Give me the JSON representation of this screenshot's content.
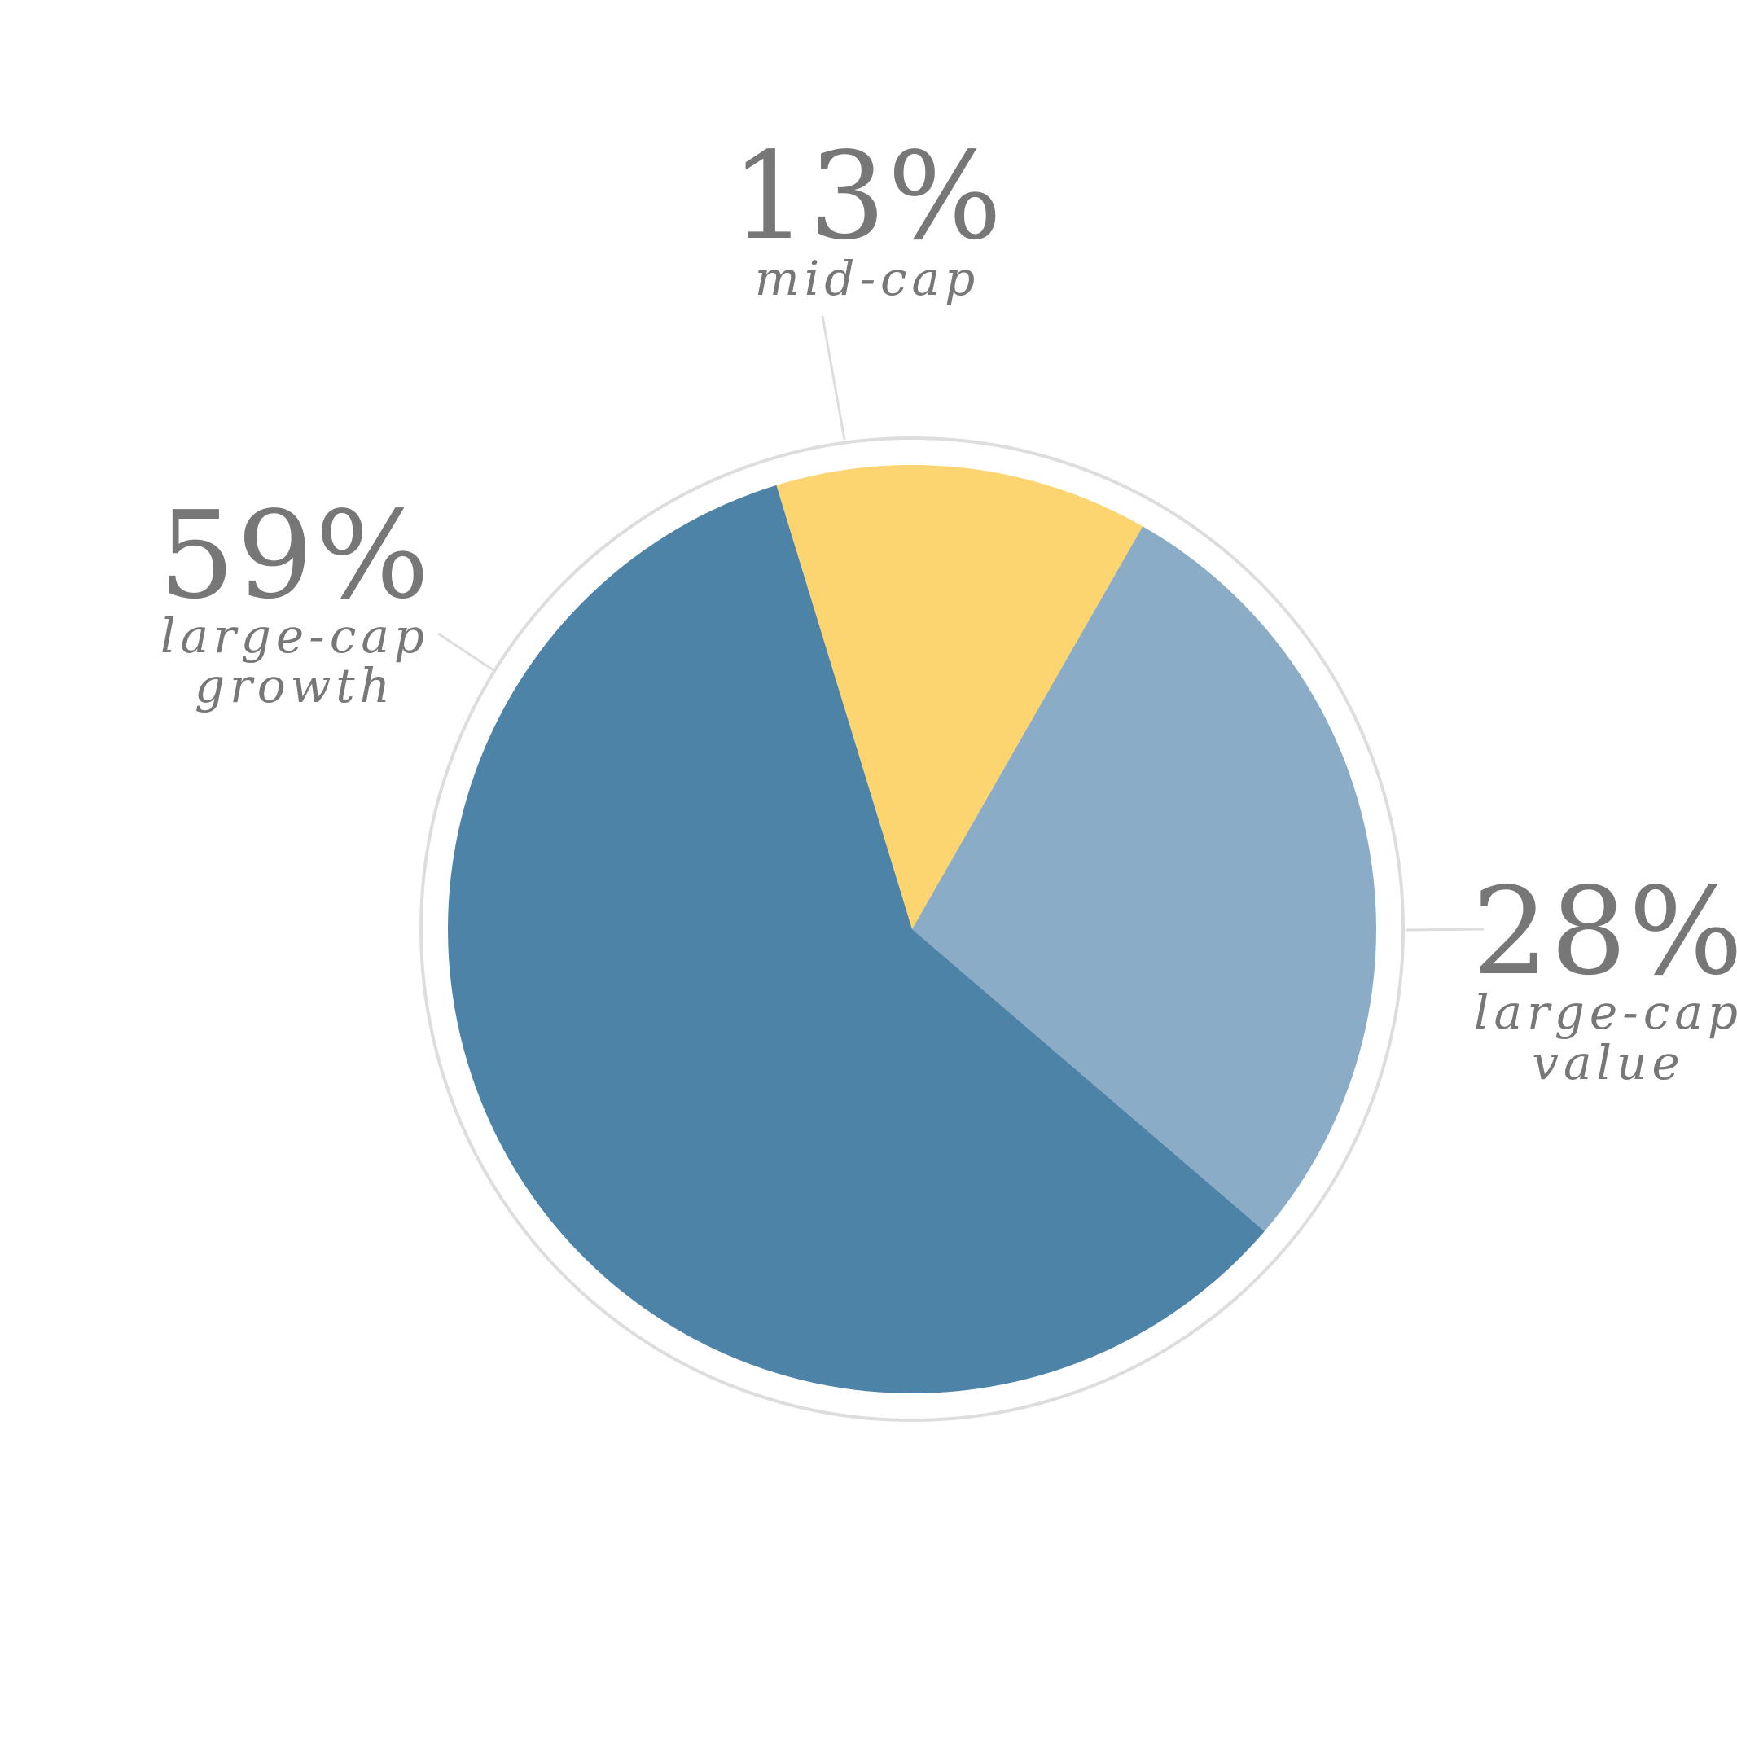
{
  "chart_data": {
    "type": "pie",
    "slices": [
      {
        "percent_label": "13%",
        "label_lines": [
          "mid-cap"
        ],
        "value": 13,
        "color": "#FCD571"
      },
      {
        "percent_label": "28%",
        "label_lines": [
          "large-cap",
          "value"
        ],
        "value": 28,
        "color": "#8BACC6"
      },
      {
        "percent_label": "59%",
        "label_lines": [
          "large-cap",
          "growth"
        ],
        "value": 59,
        "color": "#4E83A8"
      }
    ],
    "ring_color": "#DDDDDD",
    "leader_color": "#DDDDDD",
    "text_color": "#777777"
  }
}
